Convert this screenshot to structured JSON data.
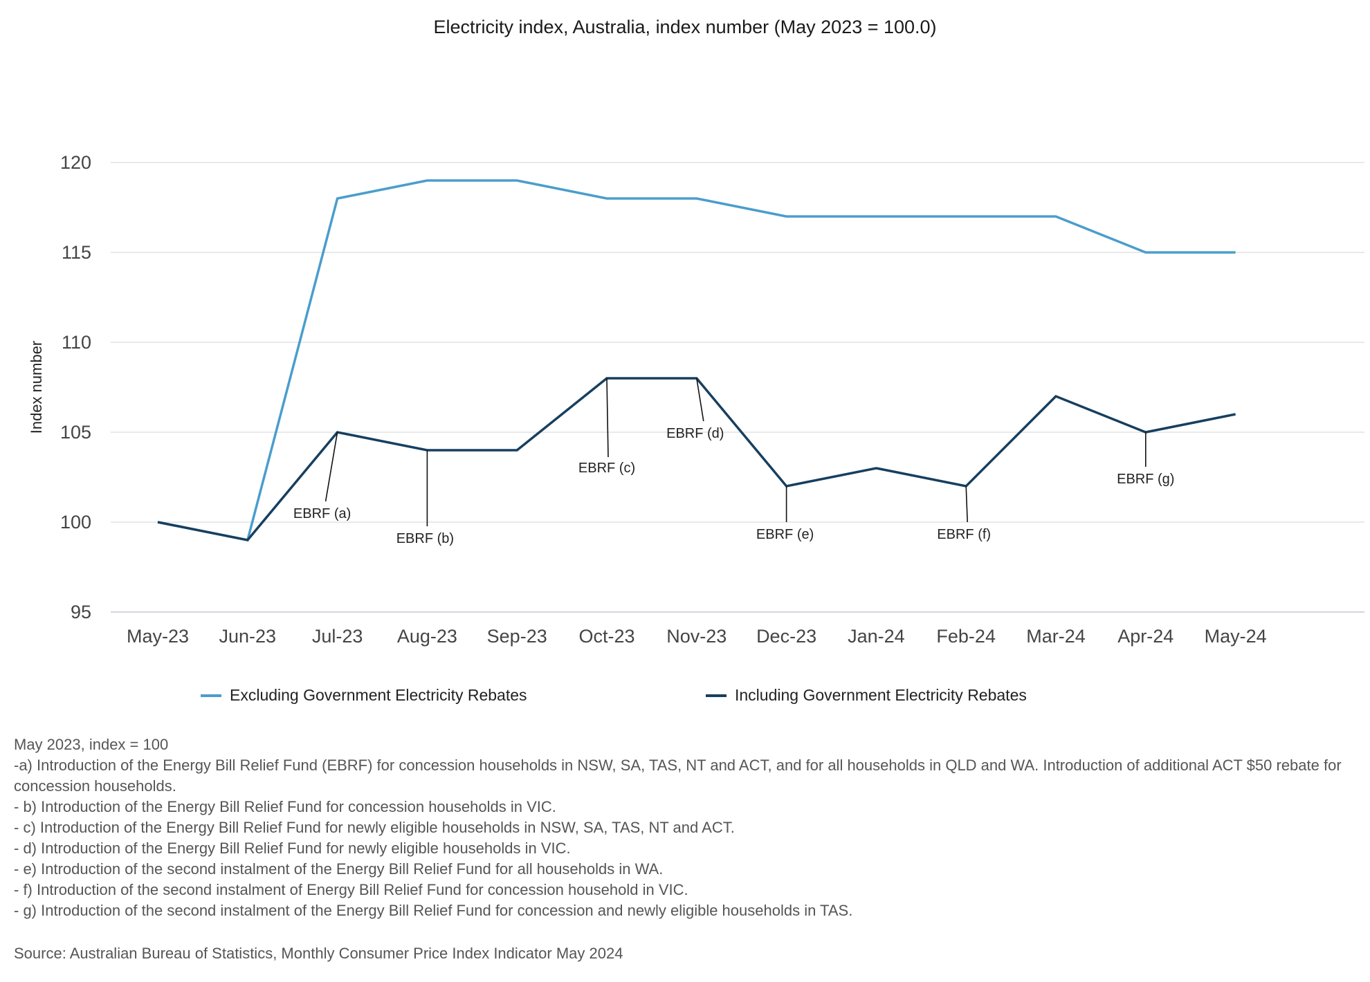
{
  "chart_data": {
    "type": "line",
    "title": "Electricity index, Australia, index number (May 2023 = 100.0)",
    "ylabel": "Index number",
    "xlabel": "",
    "ylim": [
      95,
      120
    ],
    "yticks": [
      95,
      100,
      105,
      110,
      115,
      120
    ],
    "grid": true,
    "legend_position": "bottom",
    "categories": [
      "May-23",
      "Jun-23",
      "Jul-23",
      "Aug-23",
      "Sep-23",
      "Oct-23",
      "Nov-23",
      "Dec-23",
      "Jan-24",
      "Feb-24",
      "Mar-24",
      "Apr-24",
      "May-24"
    ],
    "series": [
      {
        "name": "Excluding Government Electricity Rebates",
        "color": "#4a9dcc",
        "values": [
          100,
          99,
          118,
          119,
          119,
          118,
          118,
          117,
          117,
          117,
          117,
          115,
          115
        ]
      },
      {
        "name": "Including Government Electricity Rebates",
        "color": "#173f5f",
        "values": [
          100,
          99,
          105,
          104,
          104,
          108,
          108,
          102,
          103,
          102,
          107,
          105,
          106
        ]
      }
    ],
    "annotations": [
      {
        "label": "EBRF (a)",
        "category": "Jul-23"
      },
      {
        "label": "EBRF (b)",
        "category": "Aug-23"
      },
      {
        "label": "EBRF (c)",
        "category": "Oct-23"
      },
      {
        "label": "EBRF (d)",
        "category": "Nov-23"
      },
      {
        "label": "EBRF (e)",
        "category": "Dec-23"
      },
      {
        "label": "EBRF (f)",
        "category": "Feb-24"
      },
      {
        "label": "EBRF (g)",
        "category": "Apr-24"
      }
    ]
  },
  "notes": [
    "May 2023, index = 100",
    "-a) Introduction of the Energy Bill Relief Fund (EBRF) for concession households in NSW, SA, TAS, NT and ACT, and for all households in QLD and WA. Introduction of additional ACT $50 rebate for concession households.",
    "- b) Introduction of the Energy Bill Relief Fund for concession households in VIC.",
    "- c) Introduction of the Energy Bill Relief Fund for newly eligible households in NSW, SA, TAS, NT and ACT.",
    "- d) Introduction of the Energy Bill Relief Fund for newly eligible households in VIC.",
    "- e) Introduction of the second instalment of the Energy Bill Relief Fund for all households in WA.",
    "- f) Introduction of the second instalment of Energy Bill Relief Fund for concession household in VIC.",
    "- g) Introduction of the second instalment of the Energy Bill Relief Fund for concession and newly eligible households in TAS."
  ],
  "source": "Source: Australian Bureau of Statistics, Monthly Consumer Price Index Indicator May 2024"
}
